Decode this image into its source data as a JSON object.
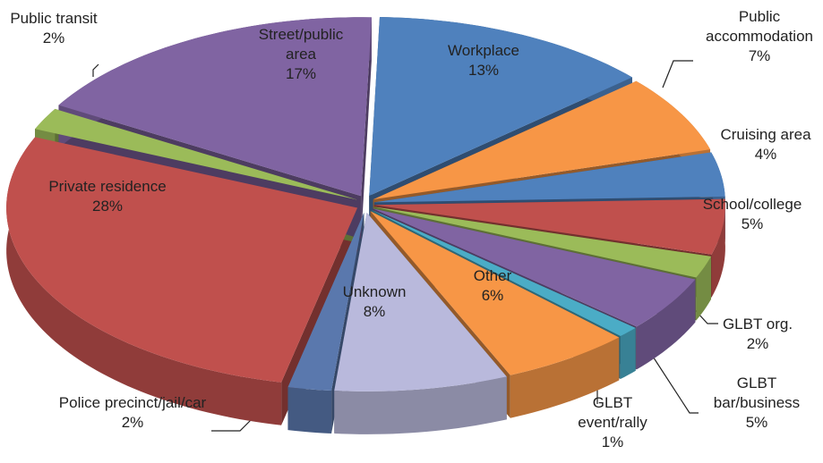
{
  "chart_data": {
    "type": "pie",
    "categories": [
      "Workplace",
      "Public accommodation",
      "Cruising area",
      "School/college",
      "GLBT org.",
      "GLBT bar/business",
      "GLBT event/rally",
      "Other",
      "Unknown",
      "Police precinct/jail/car",
      "Private residence",
      "Public transit",
      "Street/public area"
    ],
    "values": [
      13,
      7,
      4,
      5,
      2,
      5,
      1,
      6,
      8,
      2,
      28,
      2,
      17
    ],
    "value_labels": [
      "13%",
      "7%",
      "4%",
      "5%",
      "2%",
      "5%",
      "1%",
      "6%",
      "8%",
      "2%",
      "28%",
      "2%",
      "17%"
    ],
    "colors": [
      "#4f81bd",
      "#f79646",
      "#4f81bd",
      "#c0504d",
      "#9bbb59",
      "#8064a2",
      "#4bacc6",
      "#f79646",
      "#b9b9dc",
      "#5a78ad",
      "#c0504d",
      "#9bbb59",
      "#8064a2"
    ]
  }
}
